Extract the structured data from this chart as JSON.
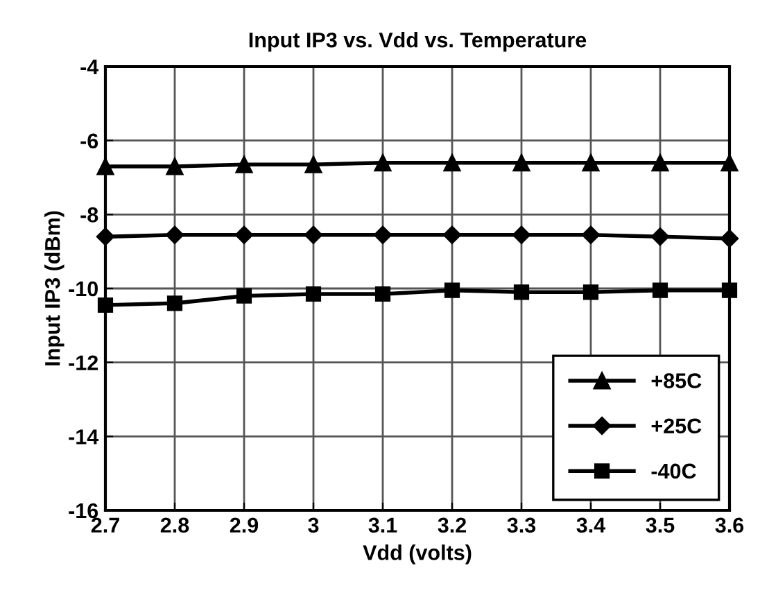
{
  "chart_data": {
    "type": "line",
    "title": "Input IP3 vs. Vdd vs. Temperature",
    "xlabel": "Vdd (volts)",
    "ylabel": "Input IP3 (dBm)",
    "x": [
      2.7,
      2.8,
      2.9,
      3.0,
      3.1,
      3.2,
      3.3,
      3.4,
      3.5,
      3.6
    ],
    "series": [
      {
        "name": "+85C",
        "color": "#000000",
        "marker": "triangle",
        "values": [
          -6.7,
          -6.7,
          -6.65,
          -6.65,
          -6.6,
          -6.6,
          -6.6,
          -6.6,
          -6.6,
          -6.6
        ]
      },
      {
        "name": "+25C",
        "color": "#000000",
        "marker": "diamond",
        "values": [
          -8.6,
          -8.55,
          -8.55,
          -8.55,
          -8.55,
          -8.55,
          -8.55,
          -8.55,
          -8.6,
          -8.65
        ]
      },
      {
        "name": "-40C",
        "color": "#000000",
        "marker": "square",
        "values": [
          -10.45,
          -10.4,
          -10.2,
          -10.15,
          -10.15,
          -10.05,
          -10.1,
          -10.1,
          -10.05,
          -10.05
        ]
      }
    ],
    "xlim": [
      2.7,
      3.6
    ],
    "xticks": [
      {
        "value": 2.7,
        "label": "2.7"
      },
      {
        "value": 2.8,
        "label": "2.8"
      },
      {
        "value": 2.9,
        "label": "2.9"
      },
      {
        "value": 3.0,
        "label": "3"
      },
      {
        "value": 3.1,
        "label": "3.1"
      },
      {
        "value": 3.2,
        "label": "3.2"
      },
      {
        "value": 3.3,
        "label": "3.3"
      },
      {
        "value": 3.4,
        "label": "3.4"
      },
      {
        "value": 3.5,
        "label": "3.5"
      },
      {
        "value": 3.6,
        "label": "3.6"
      }
    ],
    "ylim": [
      -16,
      -4
    ],
    "yticks": [
      -16,
      -14,
      -12,
      -10,
      -8,
      -6,
      -4
    ],
    "grid": true,
    "legend": "bottom right",
    "line_style": "solid"
  }
}
